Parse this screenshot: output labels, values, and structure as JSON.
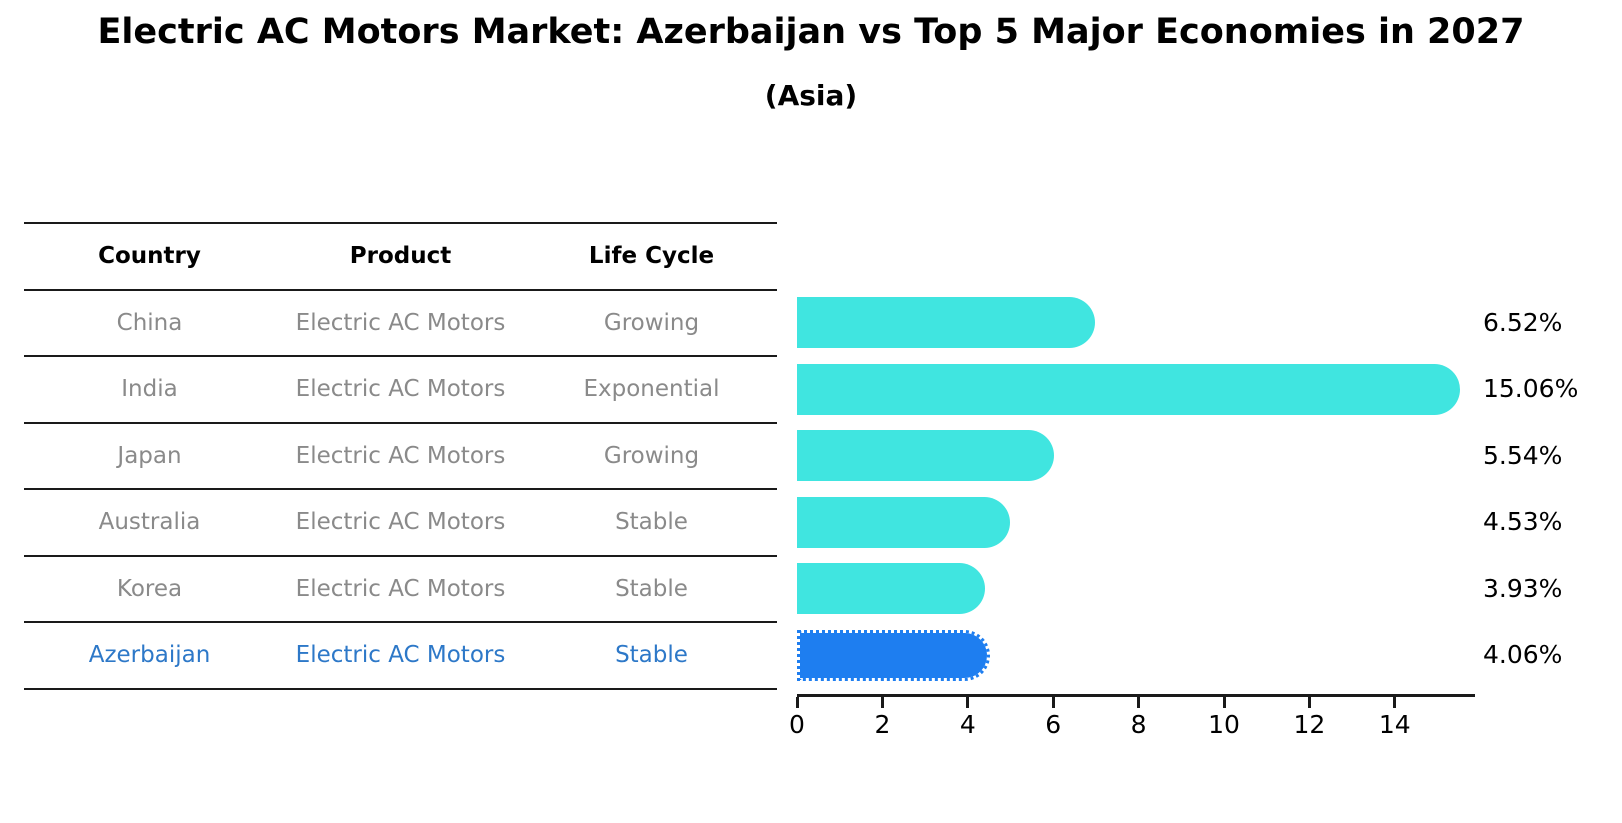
{
  "title": "Electric AC Motors Market: Azerbaijan vs Top 5 Major Economies in 2027",
  "subtitle": "(Asia)",
  "table": {
    "headers": {
      "country": "Country",
      "product": "Product",
      "life_cycle": "Life Cycle"
    },
    "rows": [
      {
        "country": "China",
        "product": "Electric AC Motors",
        "life_cycle": "Growing",
        "highlight": false
      },
      {
        "country": "India",
        "product": "Electric AC Motors",
        "life_cycle": "Exponential",
        "highlight": false
      },
      {
        "country": "Japan",
        "product": "Electric AC Motors",
        "life_cycle": "Growing",
        "highlight": false
      },
      {
        "country": "Australia",
        "product": "Electric AC Motors",
        "life_cycle": "Stable",
        "highlight": false
      },
      {
        "country": "Korea",
        "product": "Electric AC Motors",
        "life_cycle": "Stable",
        "highlight": false
      },
      {
        "country": "Azerbaijan",
        "product": "Electric AC Motors",
        "life_cycle": "Stable",
        "highlight": true
      }
    ]
  },
  "chart_data": {
    "type": "bar",
    "orientation": "horizontal",
    "categories": [
      "China",
      "India",
      "Japan",
      "Australia",
      "Korea",
      "Azerbaijan"
    ],
    "values": [
      6.52,
      15.06,
      5.54,
      4.53,
      3.93,
      4.06
    ],
    "labels": [
      "6.52%",
      "15.06%",
      "5.54%",
      "4.53%",
      "3.93%",
      "4.06%"
    ],
    "highlight_index": 5,
    "xlim": [
      0,
      15.9
    ],
    "xticks": [
      0,
      2,
      4,
      6,
      8,
      10,
      12,
      14
    ],
    "grid": false,
    "legend": "none",
    "bar_color": "#40e5e0",
    "highlight_color": "#1e7ef0",
    "highlight_text_color": "#2d78c8",
    "value_label_color": "#000000",
    "axis_color": "#1a1a1a"
  }
}
